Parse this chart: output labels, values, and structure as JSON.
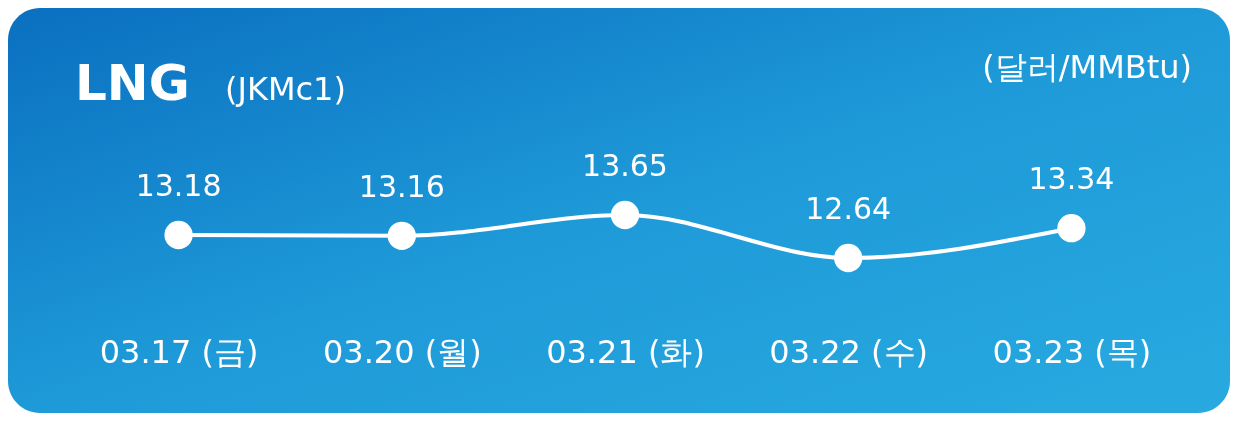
{
  "chart_data": {
    "type": "line",
    "title": "LNG",
    "subtitle": "(JKMc1)",
    "ylabel": "(달러/MMBtu)",
    "categories": [
      "03.17 (금)",
      "03.20 (월)",
      "03.21 (화)",
      "03.22 (수)",
      "03.23 (목)"
    ],
    "series": [
      {
        "color": "#ffffff",
        "values": [
          13.18,
          13.16,
          13.65,
          12.64,
          13.34
        ]
      }
    ],
    "data_labels": true,
    "marker": "circle",
    "line_style": "solid"
  }
}
